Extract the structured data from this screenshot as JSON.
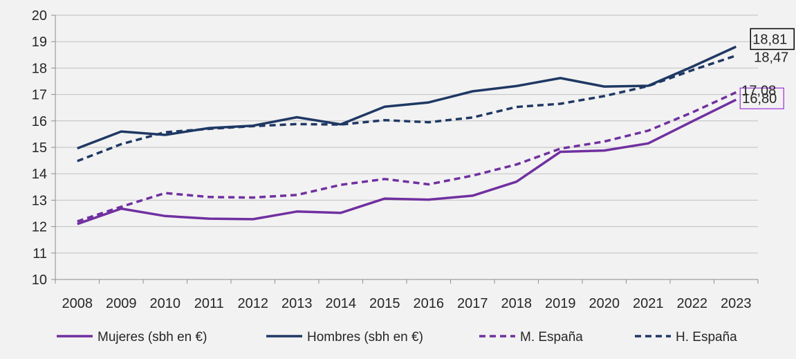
{
  "chart_data": {
    "type": "line",
    "title": "",
    "xlabel": "",
    "ylabel": "",
    "x": [
      "2008",
      "2009",
      "2010",
      "2011",
      "2012",
      "2013",
      "2014",
      "2015",
      "2016",
      "2017",
      "2018",
      "2019",
      "2020",
      "2021",
      "2022",
      "2023"
    ],
    "ylim": [
      10,
      20
    ],
    "yticks": [
      "10",
      "11",
      "12",
      "13",
      "14",
      "15",
      "16",
      "17",
      "18",
      "19",
      "20"
    ],
    "grid": "horizontal",
    "legend_position": "bottom",
    "series": [
      {
        "name": "Mujeres (sbh en €)",
        "color": "#7030a0",
        "style": "solid",
        "values": [
          12.1,
          12.68,
          12.4,
          12.3,
          12.28,
          12.57,
          12.52,
          13.06,
          13.02,
          13.17,
          13.7,
          14.83,
          14.88,
          15.15,
          15.98,
          16.8
        ],
        "end_label": "16,80",
        "end_label_box": "#9b30d9"
      },
      {
        "name": "Hombres (sbh en €)",
        "color": "#1f3864",
        "style": "solid",
        "values": [
          14.96,
          15.6,
          15.47,
          15.73,
          15.82,
          16.14,
          15.87,
          16.54,
          16.7,
          17.12,
          17.32,
          17.62,
          17.3,
          17.33,
          18.05,
          18.81
        ],
        "end_label": "18,81",
        "end_label_box": "#000000"
      },
      {
        "name": "M. España",
        "color": "#7030a0",
        "style": "dashed",
        "values": [
          12.2,
          12.75,
          13.27,
          13.12,
          13.1,
          13.2,
          13.58,
          13.8,
          13.6,
          13.93,
          14.35,
          14.95,
          15.22,
          15.63,
          16.32,
          17.08
        ],
        "end_label": "17,08"
      },
      {
        "name": "H. España",
        "color": "#1f3864",
        "style": "dashed",
        "values": [
          14.48,
          15.12,
          15.57,
          15.7,
          15.8,
          15.88,
          15.86,
          16.03,
          15.95,
          16.13,
          16.53,
          16.65,
          16.94,
          17.32,
          17.92,
          18.47
        ],
        "end_label": "18,47"
      }
    ]
  }
}
